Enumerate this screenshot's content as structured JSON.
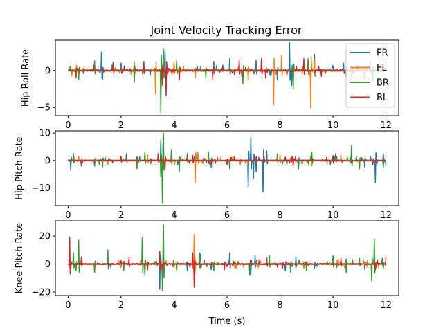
{
  "chart_data": {
    "type": "line",
    "title": "Joint Velocity Tracking Error",
    "xlabel": "Time (s)",
    "series_names": [
      "FR",
      "FL",
      "BR",
      "BL"
    ],
    "colors": {
      "FR": "#1f77b4",
      "FL": "#ff7f0e",
      "BR": "#2ca02c",
      "BL": "#d62728"
    },
    "legend": {
      "placement": "top-right",
      "entries": [
        "FR",
        "FL",
        "BR",
        "BL"
      ]
    },
    "grid": false,
    "xlim": [
      -0.48,
      12.48
    ],
    "x_ticks": [
      0,
      2,
      4,
      6,
      8,
      10,
      12
    ],
    "subplots": [
      {
        "ylabel": "Hip Roll Rate",
        "ylim": [
          -6.1,
          4.1
        ],
        "y_ticks": [
          -5,
          0
        ],
        "amp": 0.4,
        "spikes": {
          "FR": [
            [
              1.25,
              2.5
            ],
            [
              1.3,
              -1.2
            ],
            [
              2.0,
              1.0
            ],
            [
              3.65,
              2.7
            ],
            [
              4.2,
              -1.0
            ],
            [
              5.5,
              1.2
            ],
            [
              6.1,
              1.6
            ],
            [
              7.1,
              1.4
            ],
            [
              7.9,
              -1.3
            ],
            [
              8.35,
              3.8
            ],
            [
              8.45,
              -2.0
            ],
            [
              9.3,
              2.2
            ],
            [
              10.4,
              1.0
            ],
            [
              10.5,
              -1.0
            ],
            [
              11.4,
              1.2
            ]
          ],
          "FL": [
            [
              2.5,
              1.2
            ],
            [
              3.3,
              -3.2
            ],
            [
              4.0,
              1.2
            ],
            [
              4.8,
              -1.0
            ],
            [
              6.8,
              -1.3
            ],
            [
              7.75,
              -4.7
            ],
            [
              8.05,
              2.0
            ],
            [
              9.15,
              -5.1
            ],
            [
              9.3,
              1.5
            ],
            [
              10.7,
              -1.2
            ]
          ],
          "BR": [
            [
              0.4,
              -1.2
            ],
            [
              1.0,
              1.3
            ],
            [
              2.5,
              -1.6
            ],
            [
              3.5,
              -5.7
            ],
            [
              3.6,
              2.9
            ],
            [
              4.1,
              1.3
            ],
            [
              5.2,
              -1.0
            ],
            [
              6.6,
              -1.8
            ],
            [
              8.5,
              -2.5
            ],
            [
              9.05,
              1.6
            ],
            [
              11.5,
              -1.5
            ],
            [
              12.0,
              1.2
            ]
          ],
          "BL": [
            [
              0.3,
              -1.0
            ],
            [
              1.7,
              1.1
            ],
            [
              2.85,
              1.2
            ],
            [
              3.55,
              -2.0
            ],
            [
              3.7,
              -3.4
            ],
            [
              4.2,
              -1.3
            ],
            [
              5.45,
              -1.2
            ],
            [
              6.45,
              1.4
            ],
            [
              7.3,
              1.6
            ],
            [
              7.45,
              -1.0
            ],
            [
              8.9,
              1.6
            ],
            [
              11.2,
              -1.2
            ]
          ]
        }
      },
      {
        "ylabel": "Hip Pitch Rate",
        "ylim": [
          -16.4,
          10.8
        ],
        "y_ticks": [
          -10,
          0,
          10
        ],
        "amp": 0.8,
        "spikes": {
          "FR": [
            [
              0.1,
              -3.5
            ],
            [
              0.2,
              2.5
            ],
            [
              1.0,
              -2.0
            ],
            [
              2.2,
              2.5
            ],
            [
              3.5,
              7.5
            ],
            [
              3.55,
              -4.0
            ],
            [
              4.5,
              2.5
            ],
            [
              5.4,
              -2.5
            ],
            [
              6.8,
              -9.5
            ],
            [
              6.9,
              8.5
            ],
            [
              7.0,
              -6.5
            ],
            [
              7.1,
              -4.0
            ],
            [
              7.35,
              -11.5
            ],
            [
              7.5,
              3.5
            ],
            [
              8.7,
              -3.0
            ],
            [
              10.1,
              2.5
            ],
            [
              11.2,
              -2.5
            ],
            [
              11.6,
              -8.0
            ],
            [
              11.9,
              2.5
            ],
            [
              12.0,
              -2.0
            ]
          ],
          "FL": [
            [
              1.5,
              -1.5
            ],
            [
              3.0,
              2.0
            ],
            [
              4.8,
              -8.0
            ],
            [
              4.9,
              3.0
            ],
            [
              6.5,
              -1.5
            ],
            [
              8.0,
              2.0
            ],
            [
              9.2,
              -2.0
            ],
            [
              10.3,
              2.0
            ],
            [
              11.0,
              -1.8
            ]
          ],
          "BR": [
            [
              0.2,
              2.0
            ],
            [
              1.3,
              -2.5
            ],
            [
              2.6,
              -3.0
            ],
            [
              2.9,
              3.0
            ],
            [
              3.5,
              -6.0
            ],
            [
              3.55,
              -15.5
            ],
            [
              3.6,
              10.0
            ],
            [
              3.9,
              4.0
            ],
            [
              4.2,
              -4.0
            ],
            [
              5.3,
              3.0
            ],
            [
              6.1,
              -3.0
            ],
            [
              7.9,
              2.5
            ],
            [
              9.2,
              3.0
            ],
            [
              10.7,
              5.5
            ],
            [
              11.0,
              -3.0
            ],
            [
              11.9,
              -2.5
            ]
          ],
          "BL": [
            [
              0.5,
              -2.0
            ],
            [
              2.0,
              1.5
            ],
            [
              3.4,
              2.5
            ],
            [
              3.65,
              -3.5
            ],
            [
              4.7,
              2.0
            ],
            [
              6.0,
              -1.5
            ],
            [
              7.4,
              1.5
            ],
            [
              8.5,
              -2.0
            ],
            [
              10.0,
              1.8
            ],
            [
              11.5,
              -1.5
            ]
          ]
        }
      },
      {
        "ylabel": "Knee Pitch Rate",
        "ylim": [
          -22.5,
          30.9
        ],
        "y_ticks": [
          -20,
          0,
          20
        ],
        "amp": 1.5,
        "spikes": {
          "FR": [
            [
              0.05,
              3.0
            ],
            [
              1.0,
              -3.0
            ],
            [
              2.3,
              3.0
            ],
            [
              3.45,
              -18.0
            ],
            [
              3.5,
              5.0
            ],
            [
              4.5,
              -5.0
            ],
            [
              5.0,
              7.0
            ],
            [
              5.4,
              -4.0
            ],
            [
              6.1,
              8.0
            ],
            [
              6.85,
              -8.0
            ],
            [
              7.05,
              6.0
            ],
            [
              7.5,
              4.5
            ],
            [
              8.2,
              -5.0
            ],
            [
              8.6,
              5.0
            ],
            [
              9.3,
              -3.0
            ],
            [
              10.5,
              3.5
            ],
            [
              11.2,
              -4.0
            ],
            [
              11.85,
              4.0
            ]
          ],
          "FL": [
            [
              0.1,
              2.0
            ],
            [
              2.0,
              -2.5
            ],
            [
              2.8,
              3.0
            ],
            [
              3.7,
              2.5
            ],
            [
              4.75,
              21.0
            ],
            [
              4.8,
              -5.0
            ],
            [
              6.3,
              -2.5
            ],
            [
              7.2,
              3.0
            ],
            [
              8.9,
              -3.0
            ],
            [
              10.2,
              3.0
            ],
            [
              11.3,
              2.5
            ]
          ],
          "BR": [
            [
              0.1,
              -5.0
            ],
            [
              0.2,
              8.0
            ],
            [
              0.3,
              -5.0
            ],
            [
              0.4,
              17.0
            ],
            [
              1.0,
              -6.0
            ],
            [
              1.5,
              10.0
            ],
            [
              2.1,
              -5.0
            ],
            [
              2.8,
              19.0
            ],
            [
              2.9,
              -8.0
            ],
            [
              3.55,
              -19.0
            ],
            [
              3.6,
              28.0
            ],
            [
              4.1,
              -5.0
            ],
            [
              4.95,
              8.0
            ],
            [
              5.5,
              -5.0
            ],
            [
              6.9,
              -7.5
            ],
            [
              7.6,
              6.0
            ],
            [
              8.4,
              -6.0
            ],
            [
              9.0,
              -5.0
            ],
            [
              10.0,
              6.0
            ],
            [
              10.5,
              -6.0
            ],
            [
              11.0,
              4.0
            ],
            [
              11.45,
              -12.0
            ],
            [
              11.55,
              18.0
            ],
            [
              11.9,
              -3.0
            ]
          ],
          "BL": [
            [
              0.05,
              19.0
            ],
            [
              0.08,
              -7.0
            ],
            [
              0.5,
              5.0
            ],
            [
              2.3,
              5.0
            ],
            [
              3.0,
              -4.0
            ],
            [
              3.45,
              9.0
            ],
            [
              3.55,
              -6.0
            ],
            [
              4.7,
              8.0
            ],
            [
              4.75,
              -16.5
            ],
            [
              5.9,
              -4.0
            ],
            [
              6.9,
              3.0
            ],
            [
              7.5,
              4.0
            ],
            [
              8.1,
              -3.0
            ],
            [
              10.3,
              4.0
            ],
            [
              11.6,
              -4.0
            ],
            [
              12.0,
              5.0
            ]
          ]
        }
      }
    ]
  }
}
